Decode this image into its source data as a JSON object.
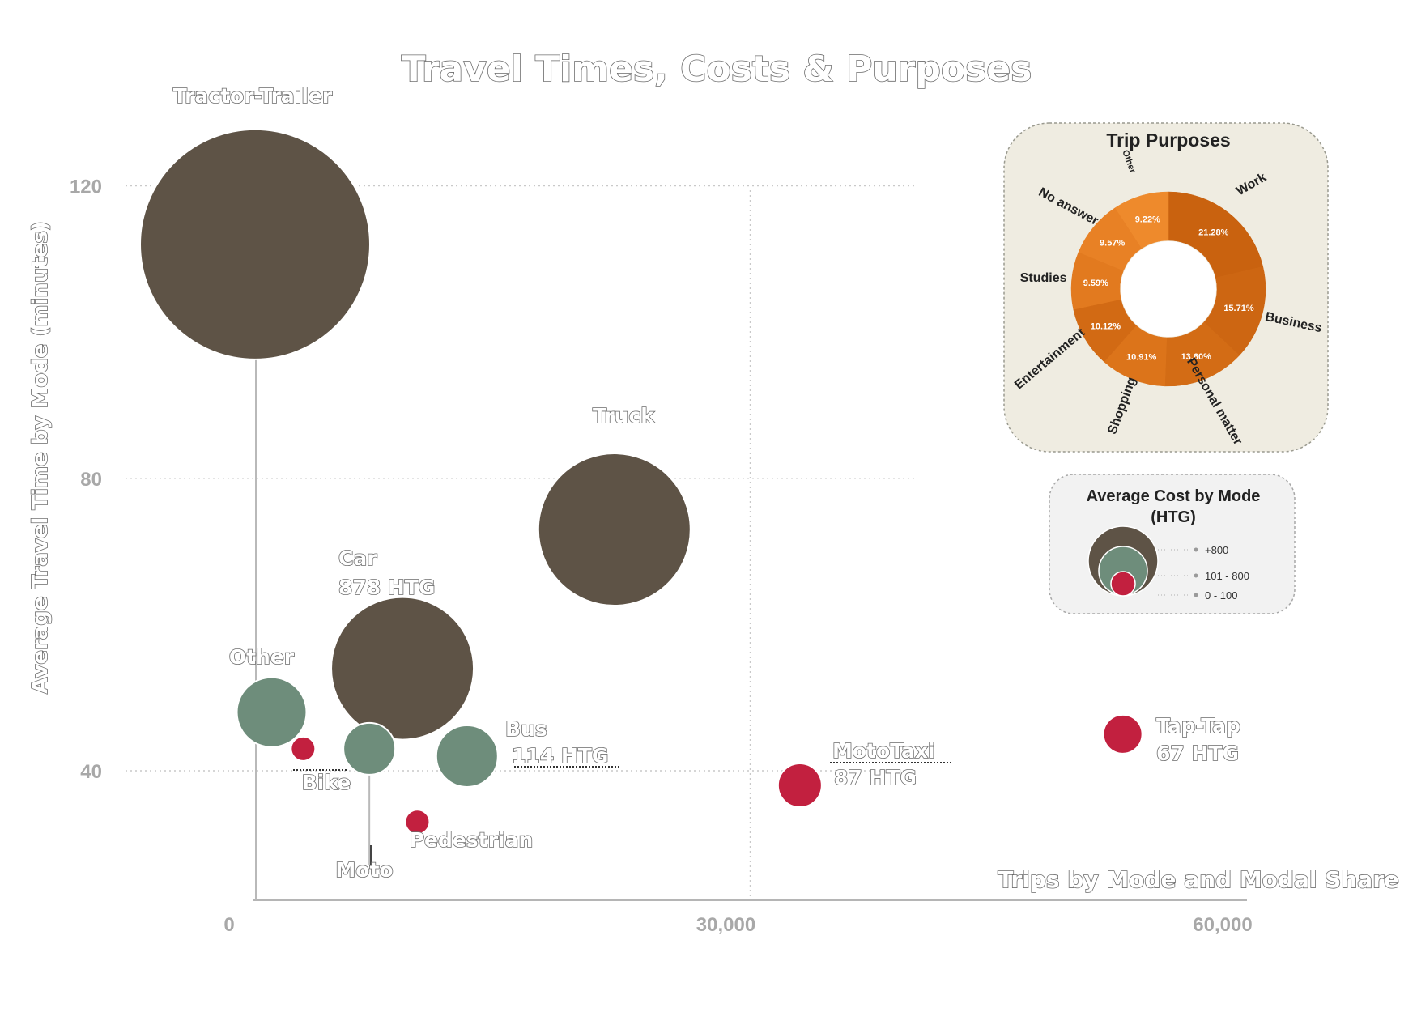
{
  "chart_data": {
    "type": "scatter",
    "title": "Travel Times, Costs & Purposes",
    "xlabel": "Trips by Mode and Modal Share",
    "ylabel": "Average Travel Time by Mode   (minutes)",
    "xlim": [
      0,
      60000
    ],
    "ylim": [
      22,
      125
    ],
    "xticks": [
      {
        "value": 0,
        "label": "0"
      },
      {
        "value": 30000,
        "label": "30,000"
      },
      {
        "value": 60000,
        "label": "60,000"
      }
    ],
    "yticks": [
      {
        "value": 40,
        "label": "40"
      },
      {
        "value": 80,
        "label": "80"
      },
      {
        "value": 120,
        "label": "120"
      }
    ],
    "grid": true,
    "points": [
      {
        "name": "Tractor-Trailer",
        "x": 0,
        "y": 112,
        "cost_group": "+800",
        "label": "Tractor-Trailer",
        "cost_label": ""
      },
      {
        "name": "Truck",
        "x": 21800,
        "y": 73,
        "cost_group": "+800",
        "label": "Truck",
        "cost_label": ""
      },
      {
        "name": "Car",
        "x": 9000,
        "y": 54,
        "cost_group": "+800",
        "label": "Car",
        "cost_label": "878 HTG"
      },
      {
        "name": "Other",
        "x": 1100,
        "y": 48,
        "cost_group": "101 - 800",
        "label": "Other",
        "cost_label": ""
      },
      {
        "name": "Moto",
        "x": 7000,
        "y": 43,
        "cost_group": "101 - 800",
        "label": "Moto",
        "cost_label": ""
      },
      {
        "name": "Bus",
        "x": 12900,
        "y": 42,
        "cost_group": "101 - 800",
        "label": "Bus",
        "cost_label": "114 HTG"
      },
      {
        "name": "Bike",
        "x": 3000,
        "y": 43,
        "cost_group": "0 - 100",
        "label": "Bike",
        "cost_label": ""
      },
      {
        "name": "Pedestrian",
        "x": 9900,
        "y": 33,
        "cost_group": "0 - 100",
        "label": "Pedestrian",
        "cost_label": ""
      },
      {
        "name": "MotoTaxi",
        "x": 33000,
        "y": 38,
        "cost_group": "0 - 100",
        "label": "MotoTaxi",
        "cost_label": "87 HTG"
      },
      {
        "name": "Tap-Tap",
        "x": 52500,
        "y": 45,
        "cost_group": "0 - 100",
        "label": "Tap-Tap",
        "cost_label": "67 HTG"
      }
    ]
  },
  "cost_legend": {
    "title_line1": "Average Cost by Mode",
    "title_line2": "(HTG)",
    "items": [
      {
        "label": "+800",
        "color": "#5e5346"
      },
      {
        "label": "101 - 800",
        "color": "#6e8d7b"
      },
      {
        "label": "0 - 100",
        "color": "#c2203f"
      }
    ]
  },
  "trip_purposes": {
    "type": "pie",
    "title": "Trip  Purposes",
    "slices": [
      {
        "label": "Work",
        "value": 21.28,
        "value_label": "21.28%",
        "color": "#c9620f"
      },
      {
        "label": "Business",
        "value": 15.71,
        "value_label": "15.71%",
        "color": "#cd6612"
      },
      {
        "label": "Personal matter",
        "value": 13.6,
        "value_label": "13.60%",
        "color": "#d36c15"
      },
      {
        "label": "Shopping",
        "value": 10.91,
        "value_label": "10.91%",
        "color": "#dc741a"
      },
      {
        "label": "Entertainment",
        "value": 10.12,
        "value_label": "10.12%",
        "color": "#d26a14"
      },
      {
        "label": "Studies",
        "value": 9.59,
        "value_label": "9.59%",
        "color": "#e27a1f"
      },
      {
        "label": "No answer",
        "value": 9.57,
        "value_label": "9.57%",
        "color": "#e88125"
      },
      {
        "label": "Other",
        "value": 9.22,
        "value_label": "9.22%",
        "color": "#ee8a2c"
      }
    ]
  },
  "colors": {
    "brown": "#5e5346",
    "green": "#6e8d7b",
    "red": "#c2203f",
    "panel_bg": "#efece1",
    "legend_bg": "#f2f2f2"
  }
}
